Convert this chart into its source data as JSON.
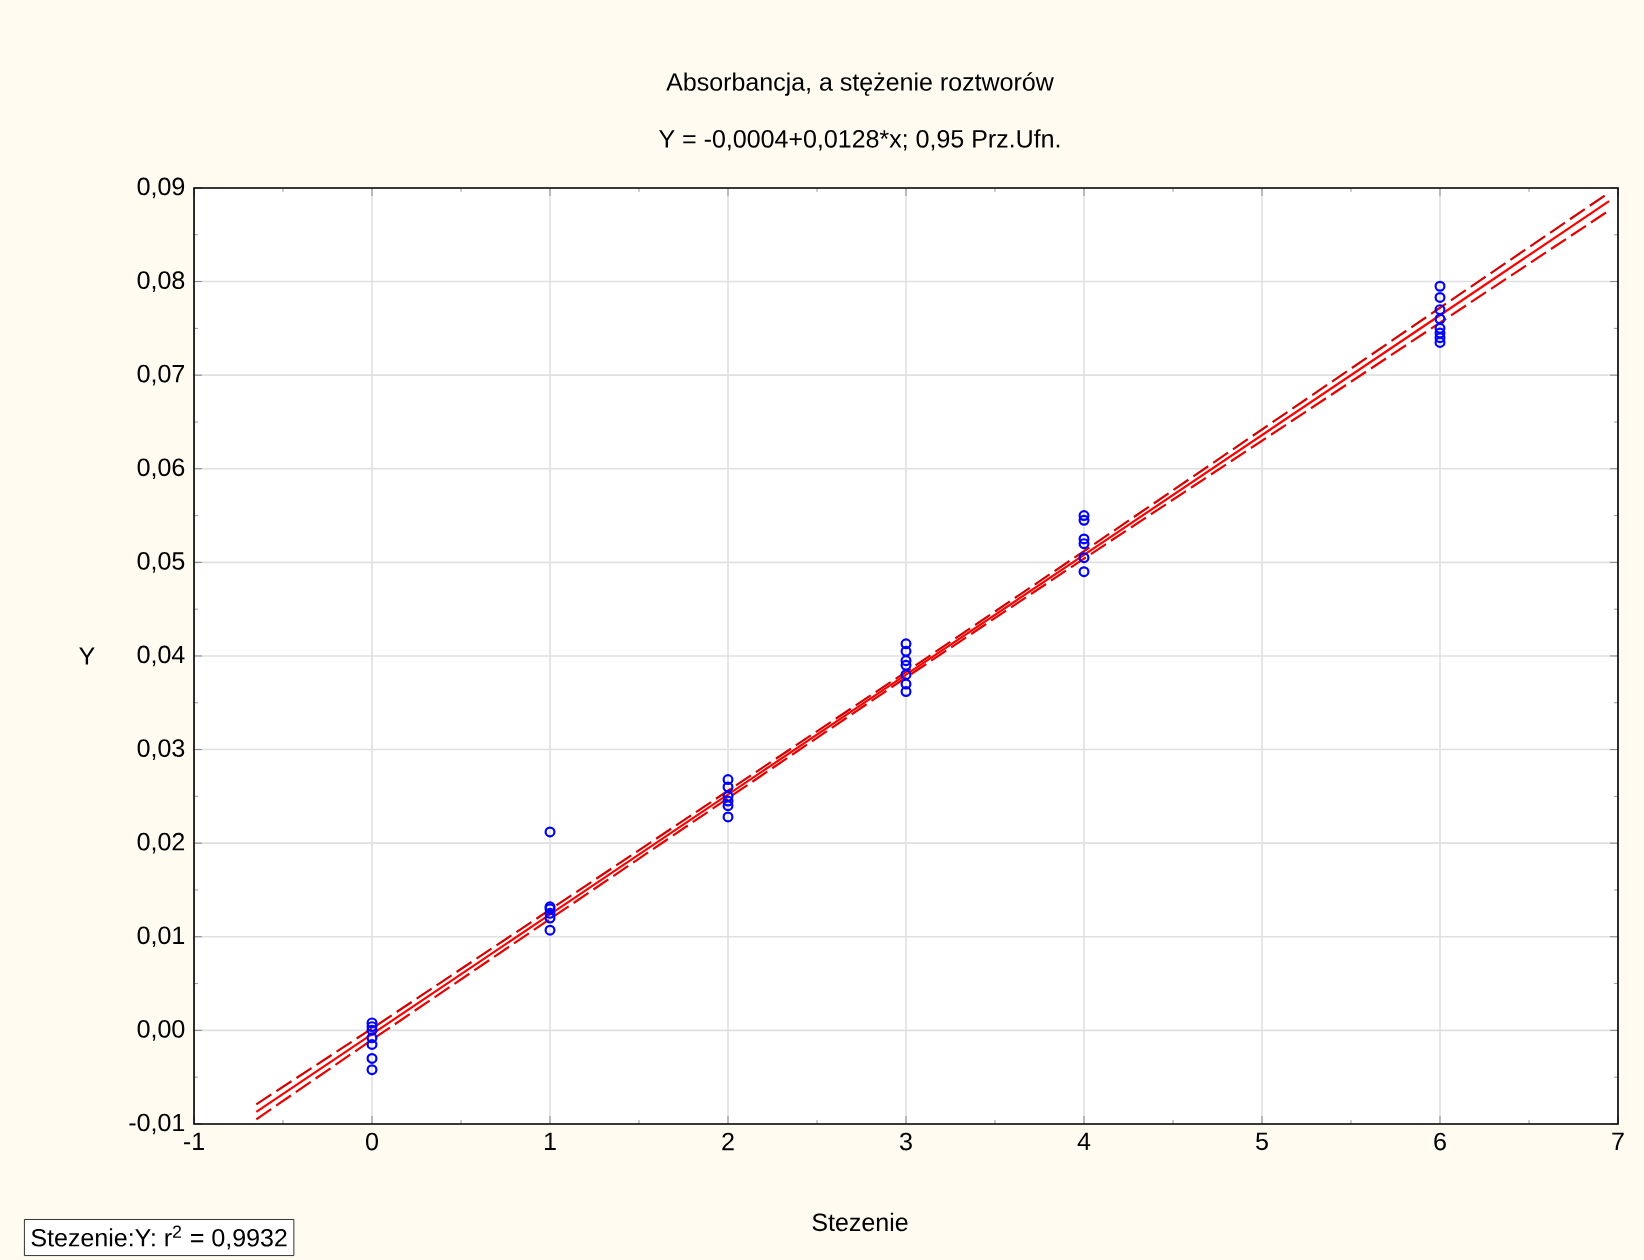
{
  "chart_data": {
    "type": "scatter",
    "title": "Absorbancja, a stężenie roztworów",
    "subtitle": "Y = -0,0004+0,0128*x; 0,95 Prz.Ufn.",
    "xlabel": "Stezenie",
    "ylabel": "Y",
    "annotations": [
      "Stezenie:Y:  r$^{2}$ = 0,9932"
    ],
    "xlim": [
      -1,
      7
    ],
    "ylim": [
      -0.01,
      0.09
    ],
    "xticks": [
      -1,
      0,
      1,
      2,
      3,
      4,
      5,
      6,
      7
    ],
    "yticks": [
      {
        "value": -0.01,
        "label": "-0,01"
      },
      {
        "value": 0,
        "label": "0,00"
      },
      {
        "value": 0.01,
        "label": "0,01"
      },
      {
        "value": 0.02,
        "label": "0,02"
      },
      {
        "value": 0.03,
        "label": "0,03"
      },
      {
        "value": 0.04,
        "label": "0,04"
      },
      {
        "value": 0.05,
        "label": "0,05"
      },
      {
        "value": 0.06,
        "label": "0,06"
      },
      {
        "value": 0.07,
        "label": "0,07"
      },
      {
        "value": 0.08,
        "label": "0,08"
      },
      {
        "value": 0.09,
        "label": "0,09"
      }
    ],
    "grid": true,
    "marker": "circle",
    "series": [
      {
        "color": "#0000ff",
        "x": [
          0,
          0,
          0,
          0,
          0,
          0,
          0,
          1,
          1,
          1,
          1,
          1,
          1,
          2,
          2,
          2,
          2,
          2,
          2,
          3,
          3,
          3,
          3,
          3,
          3,
          3,
          4,
          4,
          4,
          4,
          4,
          4,
          6,
          6,
          6,
          6,
          6,
          6,
          6,
          6
        ],
        "values": [
          0.0008,
          0.0004,
          0,
          -0.0008,
          -0.0015,
          -0.003,
          -0.0042,
          0.0212,
          0.0132,
          0.013,
          0.0125,
          0.012,
          0.0107,
          0.0268,
          0.026,
          0.025,
          0.0245,
          0.024,
          0.0228,
          0.0413,
          0.0405,
          0.0395,
          0.039,
          0.038,
          0.037,
          0.0362,
          0.055,
          0.0545,
          0.0525,
          0.052,
          0.0505,
          0.049,
          0.0795,
          0.0783,
          0.077,
          0.076,
          0.075,
          0.0745,
          0.074,
          0.0735
        ]
      },
      {
        "type": "line",
        "color": "#ff0000",
        "marker": "none",
        "line_style": "solid",
        "x": [
          -0.65,
          0,
          1,
          2,
          3,
          4,
          5,
          6,
          6.95
        ],
        "values": [
          -0.0087,
          -0.0004,
          0.0124,
          0.0252,
          0.038,
          0.0508,
          0.0636,
          0.0764,
          0.0886
        ]
      },
      {
        "type": "line",
        "color": "#e80000",
        "marker": "none",
        "line_style": "dashed",
        "x": [
          -0.65,
          0,
          1,
          2,
          3,
          4,
          5,
          6,
          6.95
        ],
        "values": [
          -0.0095,
          -0.001,
          0.0119,
          0.0248,
          0.0377,
          0.0504,
          0.063,
          0.0756,
          0.0876
        ]
      },
      {
        "type": "line",
        "color": "#d40000",
        "marker": "none",
        "line_style": "dashed",
        "x": [
          -0.65,
          0,
          1,
          2,
          3,
          4,
          5,
          6,
          6.95
        ],
        "values": [
          -0.0079,
          0.0002,
          0.0129,
          0.0256,
          0.0383,
          0.0512,
          0.0642,
          0.0772,
          0.0895
        ]
      }
    ]
  }
}
